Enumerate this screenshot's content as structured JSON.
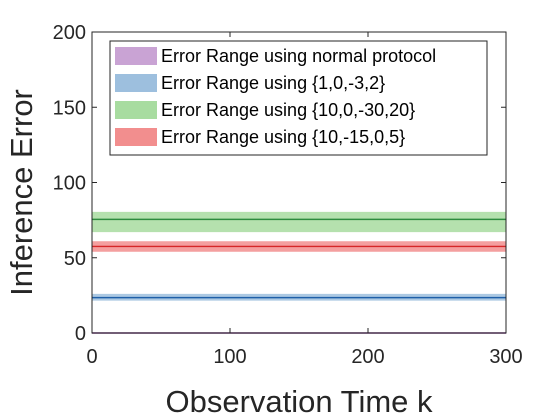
{
  "chart_data": {
    "type": "area",
    "title": "",
    "xlabel": "Observation Time k",
    "ylabel": "Inference Error",
    "xlim": [
      0,
      300
    ],
    "ylim": [
      0,
      200
    ],
    "xticks": [
      0,
      100,
      200,
      300
    ],
    "yticks": [
      0,
      50,
      100,
      150,
      200
    ],
    "grid": false,
    "legend_position": "top-right",
    "series": [
      {
        "name": "Error Range using normal protocol",
        "x": [
          0,
          300
        ],
        "center": [
          0,
          0
        ],
        "lower": [
          0,
          0
        ],
        "upper": [
          0,
          0
        ],
        "fill_color": "#c9a3d4",
        "line_color": "#7e2f8e"
      },
      {
        "name": "Error Range using {1,0,-3,2}",
        "x": [
          0,
          300
        ],
        "center": [
          23.5,
          23.5
        ],
        "lower": [
          21.5,
          21.5
        ],
        "upper": [
          26,
          26
        ],
        "fill_color": "#9dbfde",
        "line_color": "#1f5fa8"
      },
      {
        "name": "Error Range using {10,0,-30,20}",
        "x": [
          0,
          300
        ],
        "center": [
          75.5,
          75.5
        ],
        "lower": [
          67,
          67
        ],
        "upper": [
          80.5,
          80.5
        ],
        "fill_color": "#a8dca0",
        "line_color": "#2e8b3e"
      },
      {
        "name": "Error Range using {10,-15,0,5}",
        "x": [
          0,
          300
        ],
        "center": [
          57.5,
          57.5
        ],
        "lower": [
          54,
          54
        ],
        "upper": [
          61,
          61
        ],
        "fill_color": "#f28e8e",
        "line_color": "#d62728"
      }
    ]
  }
}
